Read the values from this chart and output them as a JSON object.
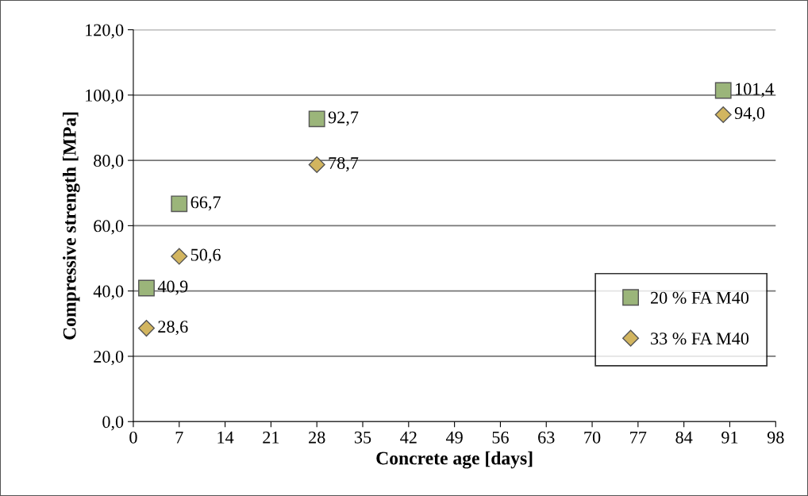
{
  "chart_data": {
    "type": "scatter",
    "xlabel": "Concrete age [days]",
    "ylabel": "Compressive strength [MPa]",
    "x": [
      2,
      7,
      28,
      90
    ],
    "series": [
      {
        "name": "20 % FA M40",
        "color": "#9bb57a",
        "marker": "square",
        "values": [
          40.9,
          66.7,
          92.7,
          101.4
        ],
        "value_labels": [
          "40,9",
          "66,7",
          "92,7",
          "101,4"
        ]
      },
      {
        "name": "33 % FA M40",
        "color": "#d2b55f",
        "marker": "diamond",
        "values": [
          28.6,
          50.6,
          78.7,
          94.0
        ],
        "value_labels": [
          "28,6",
          "50,6",
          "78,7",
          "94,0"
        ]
      }
    ],
    "xlim": [
      0,
      98
    ],
    "xticks": [
      0,
      7,
      14,
      21,
      28,
      35,
      42,
      49,
      56,
      63,
      70,
      77,
      84,
      91,
      98
    ],
    "ylim": [
      0,
      120
    ],
    "yticks": [
      {
        "value": 0,
        "label": "0,0"
      },
      {
        "value": 20,
        "label": "20,0"
      },
      {
        "value": 40,
        "label": "40,0"
      },
      {
        "value": 60,
        "label": "60,0"
      },
      {
        "value": 80,
        "label": "80,0"
      },
      {
        "value": 100,
        "label": "100,0"
      },
      {
        "value": 120,
        "label": "120,0"
      }
    ],
    "grid": "y",
    "legend": "bottom right"
  }
}
